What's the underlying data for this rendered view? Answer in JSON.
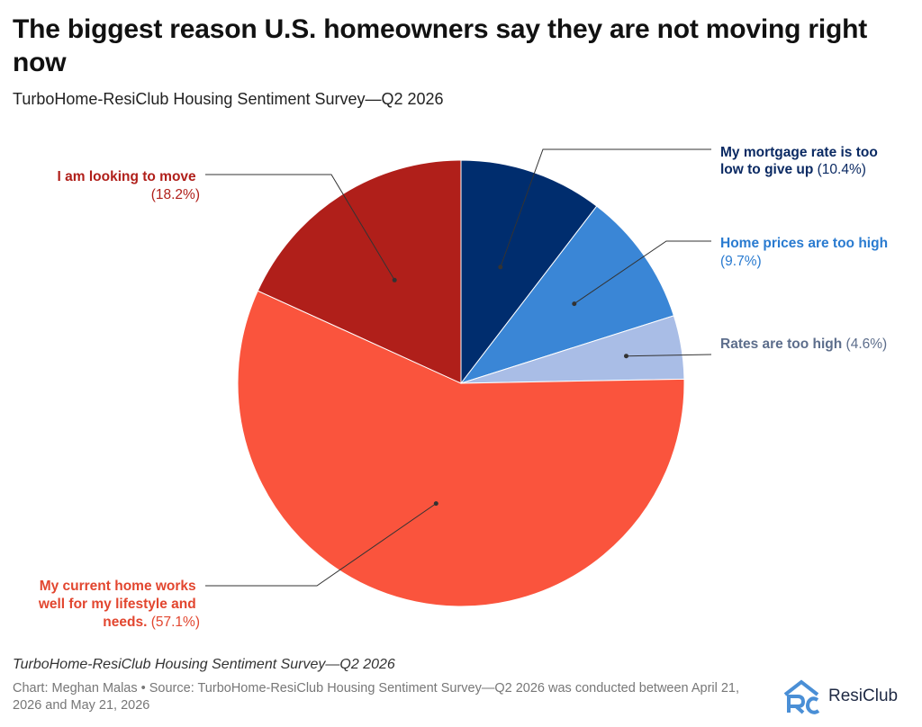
{
  "title": "The biggest reason U.S. homeowners say they are not moving right now",
  "subtitle": "TurboHome-ResiClub Housing Sentiment Survey—Q2 2026",
  "footer": {
    "note": "TurboHome-ResiClub Housing Sentiment Survey—Q2 2026",
    "credits": "Chart: Meghan Malas • Source: TurboHome-ResiClub Housing Sentiment Survey—Q2 2026 was conducted between April 21, 2026 and May 21, 2026",
    "logo_text": "ResiClub",
    "logo_mark": "RC"
  },
  "chart_data": {
    "type": "pie",
    "title": "The biggest reason U.S. homeowners say they are not moving right now",
    "subtitle": "TurboHome-ResiClub Housing Sentiment Survey—Q2 2026",
    "unit": "%",
    "slices": [
      {
        "label": "My mortgage rate is too low to give up",
        "value": 10.4,
        "value_label": "(10.4%)",
        "color": "#002d6e"
      },
      {
        "label": "Home prices are too high",
        "value": 9.7,
        "value_label": "(9.7%)",
        "color": "#3a86d6"
      },
      {
        "label": "Rates are too high",
        "value": 4.6,
        "value_label": "(4.6%)",
        "color": "#a9bde6"
      },
      {
        "label": "My current home works well for my lifestyle and needs.",
        "value": 57.1,
        "value_label": "(57.1%)",
        "color": "#fa543d"
      },
      {
        "label": "I am looking to move",
        "value": 18.2,
        "value_label": "(18.2%)",
        "color": "#b01f1a"
      }
    ],
    "label_colors": [
      "#0b2a63",
      "#2a7bd0",
      "#5d6e8c",
      "#e2462f",
      "#b01f1a"
    ],
    "start": "12 o'clock",
    "direction": "clockwise"
  }
}
